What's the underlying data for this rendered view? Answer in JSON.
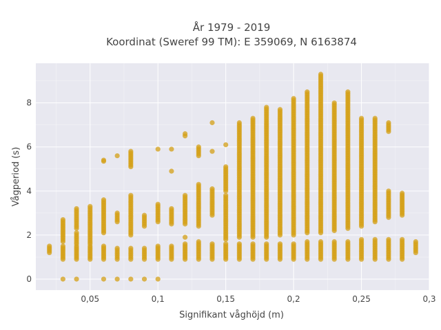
{
  "chart_data": {
    "type": "scatter",
    "title_line1": "År 1979 - 2019",
    "title_line2": "Koordinat (Sweref 99 TM): E 359069, N 6163874",
    "xlabel": "Signifikant våghöjd (m)",
    "ylabel": "Vågperiod (s)",
    "xlim": [
      0.01,
      0.3
    ],
    "ylim": [
      -0.5,
      9.8
    ],
    "xticks": [
      0.05,
      0.1,
      0.15,
      0.2,
      0.25,
      0.3
    ],
    "xtick_labels": [
      "0,05",
      "0,1",
      "0,15",
      "0,2",
      "0,25",
      "0,3"
    ],
    "yticks": [
      0,
      2,
      4,
      6,
      8
    ],
    "ytick_labels": [
      "0",
      "2",
      "4",
      "6",
      "8"
    ],
    "colors": {
      "marker": "#D4A017",
      "plot_bg": "#E8E8F0",
      "grid": "#ffffff"
    },
    "columns": [
      {
        "x": 0.02,
        "groups": [
          [
            1.2,
            1.5
          ]
        ]
      },
      {
        "x": 0.03,
        "groups": [
          [
            0.0,
            0.0
          ],
          [
            0.9,
            1.5
          ],
          [
            1.7,
            2.7
          ]
        ]
      },
      {
        "x": 0.04,
        "groups": [
          [
            0.0,
            0.0
          ],
          [
            0.9,
            1.5
          ],
          [
            1.6,
            2.1
          ],
          [
            2.3,
            3.2
          ]
        ]
      },
      {
        "x": 0.05,
        "groups": [
          [
            0.9,
            1.5
          ],
          [
            1.6,
            3.3
          ]
        ]
      },
      {
        "x": 0.06,
        "groups": [
          [
            0.0,
            0.0
          ],
          [
            0.9,
            1.5
          ],
          [
            2.1,
            3.6
          ],
          [
            5.35,
            5.4
          ]
        ]
      },
      {
        "x": 0.07,
        "groups": [
          [
            0.0,
            0.0
          ],
          [
            0.9,
            1.4
          ],
          [
            2.6,
            3.0
          ],
          [
            5.6,
            5.6
          ]
        ]
      },
      {
        "x": 0.08,
        "groups": [
          [
            0.0,
            0.0
          ],
          [
            0.9,
            1.4
          ],
          [
            2.0,
            3.8
          ],
          [
            5.1,
            5.8
          ]
        ]
      },
      {
        "x": 0.09,
        "groups": [
          [
            0.0,
            0.0
          ],
          [
            0.9,
            1.4
          ],
          [
            2.4,
            2.9
          ]
        ]
      },
      {
        "x": 0.1,
        "groups": [
          [
            0.0,
            0.0
          ],
          [
            0.9,
            1.5
          ],
          [
            2.6,
            3.4
          ],
          [
            5.9,
            5.9
          ]
        ]
      },
      {
        "x": 0.11,
        "groups": [
          [
            0.9,
            1.5
          ],
          [
            2.5,
            3.2
          ],
          [
            4.9,
            4.9
          ],
          [
            5.9,
            5.9
          ]
        ]
      },
      {
        "x": 0.12,
        "groups": [
          [
            0.9,
            1.6
          ],
          [
            1.9,
            1.9
          ],
          [
            2.5,
            3.8
          ],
          [
            6.5,
            6.6
          ]
        ]
      },
      {
        "x": 0.13,
        "groups": [
          [
            0.9,
            1.7
          ],
          [
            2.4,
            4.3
          ],
          [
            5.6,
            6.0
          ]
        ]
      },
      {
        "x": 0.14,
        "groups": [
          [
            0.9,
            1.6
          ],
          [
            2.9,
            4.1
          ],
          [
            5.8,
            5.8
          ],
          [
            7.1,
            7.1
          ]
        ]
      },
      {
        "x": 0.15,
        "groups": [
          [
            0.9,
            1.6
          ],
          [
            1.8,
            3.8
          ],
          [
            4.0,
            5.1
          ],
          [
            6.1,
            6.1
          ]
        ]
      },
      {
        "x": 0.16,
        "groups": [
          [
            0.9,
            1.6
          ],
          [
            1.9,
            7.1
          ]
        ]
      },
      {
        "x": 0.17,
        "groups": [
          [
            0.9,
            1.6
          ],
          [
            1.9,
            7.3
          ]
        ]
      },
      {
        "x": 0.18,
        "groups": [
          [
            0.9,
            1.6
          ],
          [
            1.9,
            7.8
          ]
        ]
      },
      {
        "x": 0.19,
        "groups": [
          [
            0.9,
            1.6
          ],
          [
            2.0,
            7.7
          ]
        ]
      },
      {
        "x": 0.2,
        "groups": [
          [
            0.9,
            1.6
          ],
          [
            2.0,
            8.2
          ]
        ]
      },
      {
        "x": 0.21,
        "groups": [
          [
            0.9,
            1.7
          ],
          [
            2.1,
            8.5
          ]
        ]
      },
      {
        "x": 0.22,
        "groups": [
          [
            0.9,
            1.7
          ],
          [
            2.1,
            9.3
          ]
        ]
      },
      {
        "x": 0.23,
        "groups": [
          [
            0.9,
            1.7
          ],
          [
            2.2,
            8.0
          ]
        ]
      },
      {
        "x": 0.24,
        "groups": [
          [
            0.9,
            1.7
          ],
          [
            2.3,
            8.5
          ]
        ]
      },
      {
        "x": 0.25,
        "groups": [
          [
            0.9,
            1.8
          ],
          [
            2.4,
            7.3
          ]
        ]
      },
      {
        "x": 0.26,
        "groups": [
          [
            0.9,
            1.8
          ],
          [
            2.6,
            7.3
          ]
        ]
      },
      {
        "x": 0.27,
        "groups": [
          [
            0.9,
            1.8
          ],
          [
            2.8,
            4.0
          ],
          [
            6.7,
            7.1
          ]
        ]
      },
      {
        "x": 0.28,
        "groups": [
          [
            0.9,
            1.8
          ],
          [
            2.9,
            3.9
          ]
        ]
      },
      {
        "x": 0.29,
        "groups": [
          [
            1.2,
            1.7
          ]
        ]
      }
    ]
  }
}
